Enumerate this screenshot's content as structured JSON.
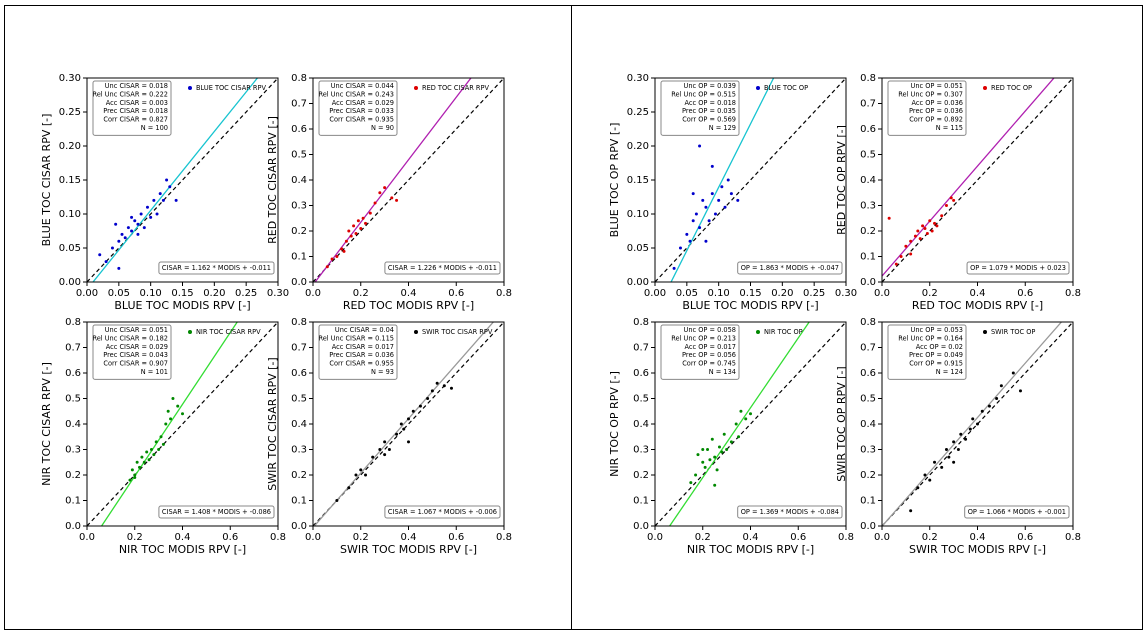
{
  "chart_data": [
    {
      "type": "scatter",
      "xlabel": "BLUE TOC MODIS RPV [-]",
      "ylabel": "BLUE TOC CISAR RPV [-]",
      "xlim": [
        0,
        0.3
      ],
      "ylim": [
        0,
        0.3
      ],
      "xticks": [
        {
          "value": 0,
          "label": "0.00"
        },
        0.05,
        {
          "value": 0.1,
          "label": "0.10"
        },
        0.15,
        {
          "value": 0.2,
          "label": "0.20"
        },
        0.25,
        {
          "value": 0.3,
          "label": "0.30"
        }
      ],
      "yticks": [
        {
          "value": 0,
          "label": "0.00"
        },
        0.05,
        {
          "value": 0.1,
          "label": "0.10"
        },
        0.15,
        {
          "value": 0.2,
          "label": "0.20"
        },
        0.25,
        {
          "value": 0.3,
          "label": "0.30"
        }
      ],
      "series": [
        {
          "name": "BLUE TOC CISAR RPV",
          "color": "#0000cc",
          "x": [
            0.02,
            0.03,
            0.04,
            0.045,
            0.05,
            0.055,
            0.06,
            0.065,
            0.07,
            0.075,
            0.08,
            0.08,
            0.085,
            0.09,
            0.095,
            0.1,
            0.105,
            0.11,
            0.115,
            0.12,
            0.125,
            0.13,
            0.14,
            0.05,
            0.07
          ],
          "values": [
            0.04,
            0.03,
            0.05,
            0.085,
            0.06,
            0.07,
            0.065,
            0.08,
            0.075,
            0.09,
            0.085,
            0.07,
            0.1,
            0.08,
            0.11,
            0.095,
            0.12,
            0.1,
            0.13,
            0.12,
            0.15,
            0.14,
            0.12,
            0.02,
            0.095
          ]
        }
      ],
      "stats": [
        "Unc CISAR = 0.018",
        "Rel Unc CISAR = 0.222",
        "Acc CISAR = 0.003",
        "Prec CISAR = 0.018",
        "Corr CISAR = 0.827",
        "N = 100"
      ],
      "fit": {
        "slope": 1.162,
        "intercept": -0.011,
        "label": "CISAR = 1.162 * MODIS + -0.011",
        "color": "#17c4d0"
      }
    },
    {
      "type": "scatter",
      "xlabel": "RED TOC MODIS RPV [-]",
      "ylabel": "RED TOC CISAR RPV [-]",
      "xlim": [
        0,
        0.8
      ],
      "ylim": [
        0,
        0.8
      ],
      "xticks": [
        {
          "value": 0,
          "label": "0.0"
        },
        0.2,
        0.4,
        0.6,
        0.8
      ],
      "yticks": [
        {
          "value": 0,
          "label": "0.0"
        },
        0.1,
        0.2,
        0.3,
        0.4,
        0.5,
        0.6,
        0.7,
        0.8
      ],
      "series": [
        {
          "name": "RED TOC CISAR RPV",
          "color": "#dd0000",
          "x": [
            0.06,
            0.08,
            0.1,
            0.12,
            0.14,
            0.15,
            0.16,
            0.17,
            0.18,
            0.19,
            0.2,
            0.21,
            0.22,
            0.24,
            0.26,
            0.28,
            0.3,
            0.33,
            0.35,
            0.13
          ],
          "values": [
            0.06,
            0.09,
            0.1,
            0.13,
            0.16,
            0.2,
            0.18,
            0.22,
            0.19,
            0.24,
            0.21,
            0.25,
            0.23,
            0.27,
            0.31,
            0.35,
            0.37,
            0.33,
            0.32,
            0.12
          ]
        }
      ],
      "stats": [
        "Unc CISAR = 0.044",
        "Rel Unc CISAR = 0.243",
        "Acc CISAR = 0.029",
        "Prec CISAR = 0.033",
        "Corr CISAR = 0.935",
        "N = 90"
      ],
      "fit": {
        "slope": 1.226,
        "intercept": -0.011,
        "label": "CISAR = 1.226 * MODIS + -0.011",
        "color": "#b020b0"
      }
    },
    {
      "type": "scatter",
      "xlabel": "NIR TOC MODIS RPV [-]",
      "ylabel": "NIR TOC CISAR RPV [-]",
      "xlim": [
        0,
        0.8
      ],
      "ylim": [
        0,
        0.8
      ],
      "xticks": [
        {
          "value": 0,
          "label": "0.0"
        },
        0.2,
        0.4,
        0.6,
        0.8
      ],
      "yticks": [
        {
          "value": 0,
          "label": "0.0"
        },
        0.1,
        0.2,
        0.3,
        0.4,
        0.5,
        0.6,
        0.7,
        0.8
      ],
      "series": [
        {
          "name": "NIR TOC CISAR RPV",
          "color": "#008800",
          "x": [
            0.18,
            0.19,
            0.2,
            0.21,
            0.22,
            0.23,
            0.24,
            0.25,
            0.26,
            0.27,
            0.28,
            0.29,
            0.3,
            0.31,
            0.32,
            0.33,
            0.34,
            0.35,
            0.36,
            0.38,
            0.4,
            0.2
          ],
          "values": [
            0.18,
            0.22,
            0.2,
            0.25,
            0.23,
            0.27,
            0.25,
            0.29,
            0.26,
            0.3,
            0.28,
            0.33,
            0.3,
            0.35,
            0.32,
            0.4,
            0.45,
            0.42,
            0.5,
            0.47,
            0.44,
            0.19
          ]
        }
      ],
      "stats": [
        "Unc CISAR = 0.051",
        "Rel Unc CISAR = 0.182",
        "Acc CISAR = 0.029",
        "Prec CISAR = 0.043",
        "Corr CISAR = 0.907",
        "N = 101"
      ],
      "fit": {
        "slope": 1.408,
        "intercept": -0.086,
        "label": "CISAR = 1.408 * MODIS + -0.086",
        "color": "#33dd33"
      }
    },
    {
      "type": "scatter",
      "xlabel": "SWIR TOC MODIS RPV [-]",
      "ylabel": "SWIR TOC CISAR RPV [-]",
      "xlim": [
        0,
        0.8
      ],
      "ylim": [
        0,
        0.8
      ],
      "xticks": [
        {
          "value": 0,
          "label": "0.0"
        },
        0.2,
        0.4,
        0.6,
        0.8
      ],
      "yticks": [
        {
          "value": 0,
          "label": "0.0"
        },
        0.1,
        0.2,
        0.3,
        0.4,
        0.5,
        0.6,
        0.7,
        0.8
      ],
      "series": [
        {
          "name": "SWIR TOC CISAR RPV",
          "color": "#000000",
          "x": [
            0.1,
            0.15,
            0.18,
            0.2,
            0.22,
            0.25,
            0.28,
            0.3,
            0.32,
            0.35,
            0.37,
            0.38,
            0.4,
            0.42,
            0.45,
            0.48,
            0.5,
            0.52,
            0.55,
            0.58,
            0.3,
            0.4
          ],
          "values": [
            0.1,
            0.15,
            0.2,
            0.22,
            0.2,
            0.27,
            0.3,
            0.33,
            0.3,
            0.36,
            0.4,
            0.38,
            0.42,
            0.45,
            0.47,
            0.5,
            0.53,
            0.56,
            0.55,
            0.54,
            0.28,
            0.33
          ]
        }
      ],
      "stats": [
        "Unc CISAR = 0.04",
        "Rel Unc CISAR = 0.115",
        "Acc CISAR = 0.017",
        "Prec CISAR = 0.036",
        "Corr CISAR = 0.955",
        "N = 93"
      ],
      "fit": {
        "slope": 1.067,
        "intercept": -0.006,
        "label": "CISAR = 1.067 * MODIS + -0.006",
        "color": "#999999"
      }
    },
    {
      "type": "scatter",
      "xlabel": "BLUE TOC MODIS RPV [-]",
      "ylabel": "BLUE TOC OP RPV [-]",
      "xlim": [
        0,
        0.3
      ],
      "ylim": [
        0,
        0.3
      ],
      "xticks": [
        {
          "value": 0,
          "label": "0.00"
        },
        0.05,
        {
          "value": 0.1,
          "label": "0.10"
        },
        0.15,
        {
          "value": 0.2,
          "label": "0.20"
        },
        0.25,
        {
          "value": 0.3,
          "label": "0.30"
        }
      ],
      "yticks": [
        {
          "value": 0,
          "label": "0.00"
        },
        0.05,
        {
          "value": 0.1,
          "label": "0.10"
        },
        0.15,
        {
          "value": 0.2,
          "label": "0.20"
        },
        0.25,
        {
          "value": 0.3,
          "label": "0.30"
        }
      ],
      "series": [
        {
          "name": "BLUE TOC OP",
          "color": "#0000cc",
          "x": [
            0.015,
            0.03,
            0.04,
            0.05,
            0.055,
            0.06,
            0.065,
            0.07,
            0.075,
            0.08,
            0.085,
            0.09,
            0.095,
            0.1,
            0.105,
            0.11,
            0.115,
            0.12,
            0.13,
            0.07,
            0.06,
            0.08,
            0.09
          ],
          "values": [
            0.245,
            0.02,
            0.05,
            0.07,
            0.06,
            0.09,
            0.1,
            0.08,
            0.12,
            0.11,
            0.09,
            0.13,
            0.1,
            0.12,
            0.14,
            0.11,
            0.15,
            0.13,
            0.12,
            0.2,
            0.13,
            0.06,
            0.17
          ]
        }
      ],
      "stats": [
        "Unc OP = 0.039",
        "Rel Unc OP = 0.515",
        "Acc OP = 0.018",
        "Prec OP = 0.035",
        "Corr OP = 0.569",
        "N = 129"
      ],
      "fit": {
        "slope": 1.863,
        "intercept": -0.047,
        "label": "OP = 1.863 * MODIS + -0.047",
        "color": "#17c4d0"
      }
    },
    {
      "type": "scatter",
      "xlabel": "RED TOC MODIS RPV [-]",
      "ylabel": "RED TOC OP RPV [-]",
      "xlim": [
        0,
        0.8
      ],
      "ylim": [
        0,
        0.8
      ],
      "xticks": [
        {
          "value": 0,
          "label": "0.0"
        },
        0.2,
        0.4,
        0.6,
        0.8
      ],
      "yticks": [
        {
          "value": 0,
          "label": "0.0"
        },
        0.1,
        0.2,
        0.3,
        0.4,
        0.5,
        0.6,
        0.7,
        0.8
      ],
      "series": [
        {
          "name": "RED TOC OP",
          "color": "#dd0000",
          "x": [
            0.03,
            0.06,
            0.08,
            0.1,
            0.12,
            0.14,
            0.15,
            0.16,
            0.17,
            0.18,
            0.19,
            0.2,
            0.21,
            0.22,
            0.23,
            0.25,
            0.27,
            0.29,
            0.3,
            0.12
          ],
          "values": [
            0.25,
            0.07,
            0.1,
            0.14,
            0.16,
            0.18,
            0.2,
            0.17,
            0.22,
            0.21,
            0.19,
            0.24,
            0.2,
            0.23,
            0.22,
            0.26,
            0.3,
            0.33,
            0.32,
            0.11
          ]
        }
      ],
      "stats": [
        "Unc OP = 0.051",
        "Rel Unc OP = 0.307",
        "Acc OP = 0.036",
        "Prec OP = 0.036",
        "Corr OP = 0.892",
        "N = 115"
      ],
      "fit": {
        "slope": 1.079,
        "intercept": 0.023,
        "label": "OP = 1.079 * MODIS + 0.023",
        "color": "#b020b0"
      }
    },
    {
      "type": "scatter",
      "xlabel": "NIR TOC MODIS RPV [-]",
      "ylabel": "NIR TOC OP RPV [-]",
      "xlim": [
        0,
        0.8
      ],
      "ylim": [
        0,
        0.8
      ],
      "xticks": [
        {
          "value": 0,
          "label": "0.0"
        },
        0.2,
        0.4,
        0.6,
        0.8
      ],
      "yticks": [
        {
          "value": 0,
          "label": "0.0"
        },
        0.1,
        0.2,
        0.3,
        0.4,
        0.5,
        0.6,
        0.7,
        0.8
      ],
      "series": [
        {
          "name": "NIR TOC OP",
          "color": "#008800",
          "x": [
            0.15,
            0.17,
            0.18,
            0.2,
            0.21,
            0.22,
            0.23,
            0.24,
            0.25,
            0.26,
            0.27,
            0.28,
            0.29,
            0.3,
            0.32,
            0.34,
            0.35,
            0.36,
            0.38,
            0.4,
            0.25,
            0.2
          ],
          "values": [
            0.17,
            0.2,
            0.28,
            0.25,
            0.23,
            0.3,
            0.26,
            0.34,
            0.27,
            0.22,
            0.31,
            0.29,
            0.36,
            0.3,
            0.33,
            0.4,
            0.35,
            0.45,
            0.42,
            0.44,
            0.16,
            0.3
          ]
        }
      ],
      "stats": [
        "Unc OP = 0.058",
        "Rel Unc OP = 0.213",
        "Acc OP = 0.017",
        "Prec OP = 0.056",
        "Corr OP = 0.745",
        "N = 134"
      ],
      "fit": {
        "slope": 1.369,
        "intercept": -0.084,
        "label": "OP = 1.369 * MODIS + -0.084",
        "color": "#33dd33"
      }
    },
    {
      "type": "scatter",
      "xlabel": "SWIR TOC MODIS RPV [-]",
      "ylabel": "SWIR TOC OP RPV [-]",
      "xlim": [
        0,
        0.8
      ],
      "ylim": [
        0,
        0.8
      ],
      "xticks": [
        {
          "value": 0,
          "label": "0.0"
        },
        0.2,
        0.4,
        0.6,
        0.8
      ],
      "yticks": [
        {
          "value": 0,
          "label": "0.0"
        },
        0.1,
        0.2,
        0.3,
        0.4,
        0.5,
        0.6,
        0.7,
        0.8
      ],
      "series": [
        {
          "name": "SWIR TOC OP",
          "color": "#000000",
          "x": [
            0.12,
            0.15,
            0.18,
            0.2,
            0.22,
            0.25,
            0.27,
            0.28,
            0.3,
            0.32,
            0.33,
            0.35,
            0.37,
            0.38,
            0.4,
            0.42,
            0.45,
            0.48,
            0.5,
            0.55,
            0.58,
            0.3
          ],
          "values": [
            0.06,
            0.15,
            0.2,
            0.18,
            0.25,
            0.23,
            0.3,
            0.27,
            0.33,
            0.3,
            0.36,
            0.34,
            0.38,
            0.42,
            0.4,
            0.45,
            0.47,
            0.5,
            0.55,
            0.6,
            0.53,
            0.25
          ]
        }
      ],
      "stats": [
        "Unc OP = 0.053",
        "Rel Unc OP = 0.164",
        "Acc OP = 0.02",
        "Prec OP = 0.049",
        "Corr OP = 0.915",
        "N = 124"
      ],
      "fit": {
        "slope": 1.066,
        "intercept": -0.001,
        "label": "OP = 1.066 * MODIS + -0.001",
        "color": "#999999"
      }
    }
  ]
}
